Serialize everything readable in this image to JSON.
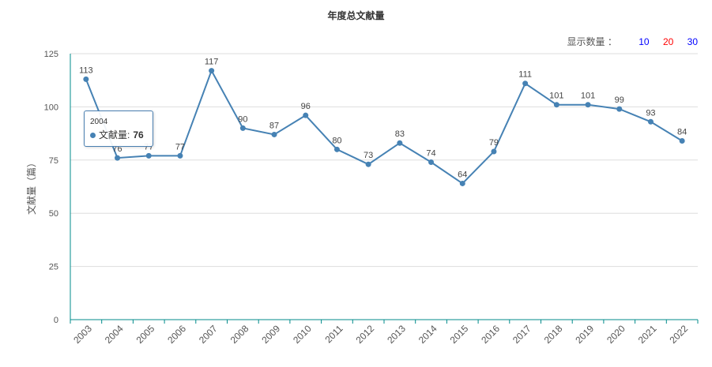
{
  "chart_data": {
    "type": "line",
    "title": "年度总文献量",
    "ylabel": "文献量（篇）",
    "xlabel": "",
    "categories": [
      "2003",
      "2004",
      "2005",
      "2006",
      "2007",
      "2008",
      "2009",
      "2010",
      "2011",
      "2012",
      "2013",
      "2014",
      "2015",
      "2016",
      "2017",
      "2018",
      "2019",
      "2020",
      "2021",
      "2022"
    ],
    "series": [
      {
        "name": "文献量",
        "values": [
          113,
          76,
          77,
          77,
          117,
          90,
          87,
          96,
          80,
          73,
          83,
          74,
          64,
          79,
          111,
          101,
          101,
          99,
          93,
          84
        ]
      }
    ],
    "ylim": [
      0,
      125
    ],
    "yticks": [
      0,
      25,
      50,
      75,
      100,
      125
    ],
    "grid": true,
    "line_color": "#4682b4"
  },
  "controls": {
    "count_label": "显示数量 ：",
    "options": [
      {
        "label": "10",
        "color": "#0000ff"
      },
      {
        "label": "20",
        "color": "#ff0000"
      },
      {
        "label": "30",
        "color": "#0000ff"
      }
    ]
  },
  "tooltip": {
    "x": "2004",
    "series_label": "文献量:",
    "value": "76"
  }
}
